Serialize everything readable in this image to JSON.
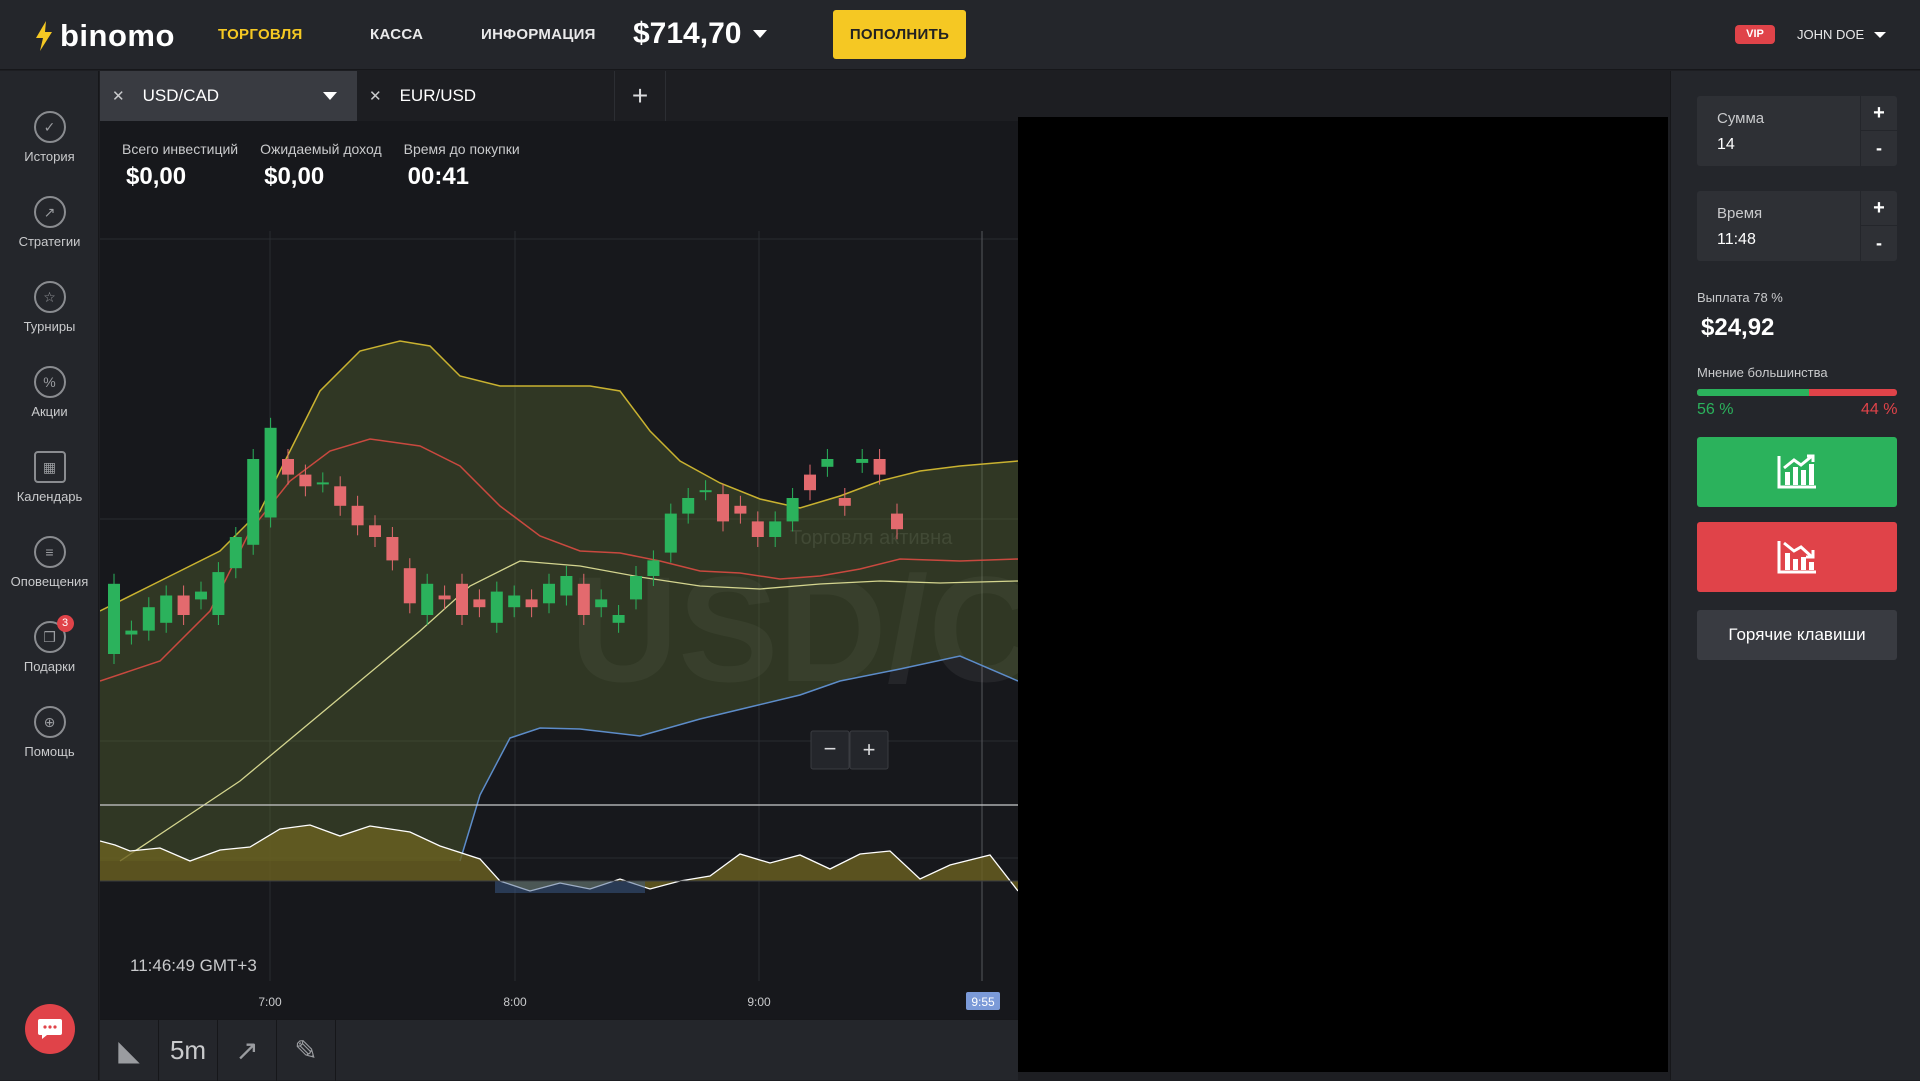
{
  "brand": "binomo",
  "nav": {
    "trading": "ТОРГОВЛЯ",
    "cashier": "КАССА",
    "info": "ИНФОРМАЦИЯ"
  },
  "balance": "$714,70",
  "deposit_label": "ПОПОЛНИТЬ",
  "vip": "VIP",
  "user": "JOHN DOE",
  "sidebar": [
    {
      "label": "История",
      "icon": "check-icon"
    },
    {
      "label": "Стратегии",
      "icon": "strategy-icon"
    },
    {
      "label": "Турниры",
      "icon": "trophy-icon"
    },
    {
      "label": "Акции",
      "icon": "percent-icon"
    },
    {
      "label": "Календарь",
      "icon": "calendar-icon"
    },
    {
      "label": "Оповещения",
      "icon": "bell-icon"
    },
    {
      "label": "Подарки",
      "icon": "gift-icon",
      "badge": "3"
    },
    {
      "label": "Помощь",
      "icon": "help-icon"
    }
  ],
  "tabs": [
    {
      "label": "USD/CAD",
      "active": true
    },
    {
      "label": "EUR/USD",
      "active": false
    }
  ],
  "stats": {
    "total_label": "Всего инвестиций",
    "total_value": "$0,00",
    "expected_label": "Ожидаемый доход",
    "expected_value": "$0,00",
    "time_label": "Время до покупки",
    "time_value": "00:41"
  },
  "chart": {
    "watermark": "USD/C",
    "overlay_text": "Торговля активна",
    "clock": "11:46:49 GMT+3",
    "x_ticks": [
      "7:00",
      "8:00",
      "9:00"
    ],
    "current_marker": "9:55",
    "timeframe": "5m"
  },
  "panel": {
    "sum_label": "Сумма",
    "sum_value": "14",
    "time_label": "Время",
    "time_value": "11:48",
    "payout_label": "Выплата 78 %",
    "payout_value": "$24,92",
    "opinion_label": "Мнение большинства",
    "opinion_up": 56,
    "opinion_up_label": "56 %",
    "opinion_down_label": "44 %",
    "hotkeys": "Горячие клавиши"
  },
  "colors": {
    "up": "#2bb25c",
    "down": "#e04349",
    "accent": "#f5c823"
  },
  "chart_data": {
    "type": "candlestick",
    "x": [
      "7:00",
      "8:00",
      "9:00"
    ],
    "candles_open": [
      30,
      35,
      36,
      38,
      45,
      44,
      40,
      52,
      58,
      65,
      80,
      76,
      74,
      73,
      68,
      63,
      60,
      52,
      40,
      45,
      48,
      44,
      38,
      42,
      44,
      43,
      45,
      48,
      42,
      38,
      44,
      50,
      56,
      66,
      72,
      71,
      68,
      64,
      60,
      64,
      76,
      78,
      70,
      79,
      80,
      66
    ],
    "candles_close": [
      48,
      36,
      42,
      45,
      40,
      46,
      51,
      60,
      80,
      88,
      76,
      73,
      74,
      68,
      63,
      60,
      54,
      43,
      48,
      44,
      40,
      42,
      46,
      45,
      42,
      48,
      50,
      40,
      44,
      40,
      50,
      54,
      66,
      70,
      72,
      64,
      66,
      60,
      64,
      70,
      72,
      80,
      68,
      80,
      76,
      62
    ]
  }
}
